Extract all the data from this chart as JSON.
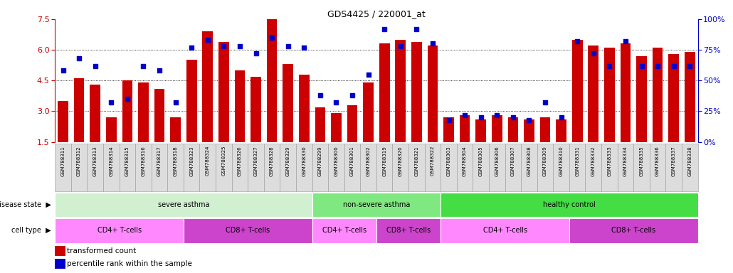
{
  "title": "GDS4425 / 220001_at",
  "samples": [
    "GSM788311",
    "GSM788312",
    "GSM788313",
    "GSM788314",
    "GSM788315",
    "GSM788316",
    "GSM788317",
    "GSM788318",
    "GSM788323",
    "GSM788324",
    "GSM788325",
    "GSM788326",
    "GSM788327",
    "GSM788328",
    "GSM788329",
    "GSM788330",
    "GSM788299",
    "GSM788300",
    "GSM788301",
    "GSM788302",
    "GSM788319",
    "GSM788320",
    "GSM788321",
    "GSM788322",
    "GSM788303",
    "GSM788304",
    "GSM788305",
    "GSM788306",
    "GSM788307",
    "GSM788308",
    "GSM788309",
    "GSM788310",
    "GSM788331",
    "GSM788332",
    "GSM788333",
    "GSM788334",
    "GSM788335",
    "GSM788336",
    "GSM788337",
    "GSM788338"
  ],
  "bar_values": [
    3.5,
    4.6,
    4.3,
    2.7,
    4.5,
    4.4,
    4.1,
    2.7,
    5.5,
    6.9,
    6.4,
    5.0,
    4.7,
    7.5,
    5.3,
    4.8,
    3.2,
    2.9,
    3.3,
    4.4,
    6.3,
    6.5,
    6.4,
    6.2,
    2.7,
    2.8,
    2.6,
    2.8,
    2.7,
    2.6,
    2.7,
    2.6,
    6.5,
    6.2,
    6.1,
    6.3,
    5.7,
    6.1,
    5.8,
    5.9
  ],
  "dot_values": [
    58,
    68,
    62,
    32,
    35,
    62,
    58,
    32,
    77,
    83,
    78,
    78,
    72,
    85,
    78,
    77,
    38,
    32,
    38,
    55,
    92,
    78,
    92,
    80,
    18,
    22,
    20,
    22,
    20,
    18,
    32,
    20,
    82,
    72,
    62,
    82,
    62,
    62,
    62,
    62
  ],
  "ylim_left": [
    1.5,
    7.5
  ],
  "ylim_right": [
    0,
    100
  ],
  "yticks_left": [
    1.5,
    3.0,
    4.5,
    6.0,
    7.5
  ],
  "yticks_right": [
    0,
    25,
    50,
    75,
    100
  ],
  "bar_color": "#cc0000",
  "dot_color": "#0000cc",
  "disease_states": [
    {
      "label": "severe asthma",
      "start": 0,
      "end": 16,
      "color": "#d0f0d0"
    },
    {
      "label": "non-severe asthma",
      "start": 16,
      "end": 24,
      "color": "#80e880"
    },
    {
      "label": "healthy control",
      "start": 24,
      "end": 40,
      "color": "#44dd44"
    }
  ],
  "cell_types": [
    {
      "label": "CD4+ T-cells",
      "start": 0,
      "end": 8,
      "color": "#ff88ff"
    },
    {
      "label": "CD8+ T-cells",
      "start": 8,
      "end": 16,
      "color": "#cc44cc"
    },
    {
      "label": "CD4+ T-cells",
      "start": 16,
      "end": 20,
      "color": "#ff88ff"
    },
    {
      "label": "CD8+ T-cells",
      "start": 20,
      "end": 24,
      "color": "#cc44cc"
    },
    {
      "label": "CD4+ T-cells",
      "start": 24,
      "end": 32,
      "color": "#ff88ff"
    },
    {
      "label": "CD8+ T-cells",
      "start": 32,
      "end": 40,
      "color": "#cc44cc"
    }
  ],
  "legend_items": [
    {
      "label": "transformed count",
      "color": "#cc0000"
    },
    {
      "label": "percentile rank within the sample",
      "color": "#0000cc"
    }
  ],
  "grid_yticks": [
    3.0,
    4.5,
    6.0
  ],
  "bar_bottom": 1.5,
  "xtick_bg": "#dddddd",
  "xtick_border": "#aaaaaa"
}
